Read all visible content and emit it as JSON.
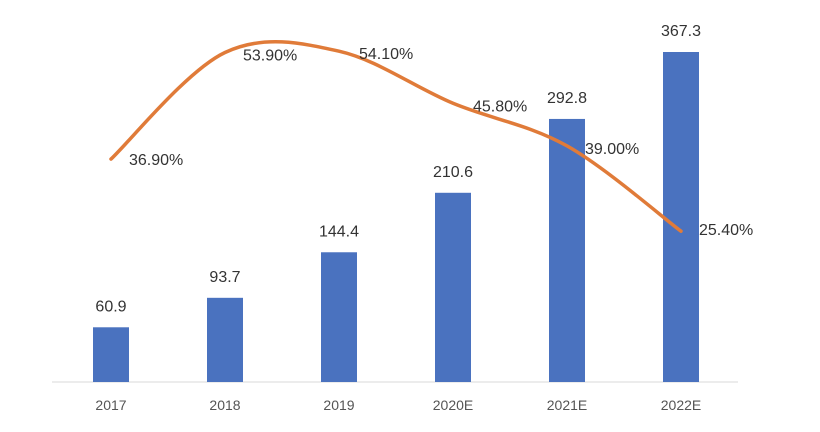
{
  "chart_data": {
    "type": "bar",
    "categories": [
      "2017",
      "2018",
      "2019",
      "2020E",
      "2021E",
      "2022E"
    ],
    "series": [
      {
        "type": "bar",
        "values": [
          60.9,
          93.7,
          144.4,
          210.6,
          292.8,
          367.3
        ],
        "labels": [
          "60.9",
          "93.7",
          "144.4",
          "210.6",
          "292.8",
          "367.3"
        ]
      },
      {
        "type": "line",
        "values": [
          36.9,
          53.9,
          54.1,
          45.8,
          39.0,
          25.4
        ],
        "labels": [
          "36.90%",
          "53.90%",
          "54.10%",
          "45.80%",
          "39.00%",
          "25.40%"
        ]
      }
    ],
    "title": "",
    "xlabel": "",
    "ylabel": "",
    "grid": false,
    "legend": "none",
    "colors": {
      "bar": "#4a72bf",
      "line": "#e07b39"
    }
  }
}
